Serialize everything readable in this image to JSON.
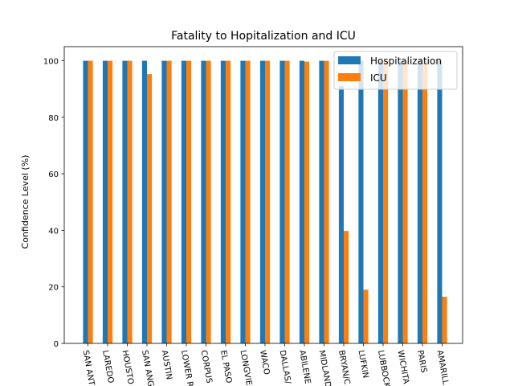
{
  "chart_data": {
    "type": "bar",
    "title": "Fatality to Hopitalization and ICU",
    "xlabel": "",
    "ylabel": "Confidence Level (%)",
    "ylim": [
      0,
      105
    ],
    "yticks": [
      0,
      20,
      40,
      60,
      80,
      100
    ],
    "categories": [
      "SAN ANT",
      "LAREDO",
      "HOUSTO",
      "SAN ANG",
      "AUSTIN",
      "LOWER R",
      "CORPUS",
      "EL PASO",
      "LONGVIE",
      "WACO",
      "DALLAS/",
      "ABILENE",
      "MIDLAND",
      "BRYAN/C",
      "LUFKIN",
      "LUBBOCK",
      "WICHITA",
      "PARIS",
      "AMARILL"
    ],
    "series": [
      {
        "name": "Hospitalization",
        "color": "#1f77b4",
        "values": [
          100,
          100,
          100,
          100,
          100,
          100,
          100,
          100,
          100,
          100,
          100,
          100,
          100,
          91,
          100,
          100,
          100,
          100,
          100
        ]
      },
      {
        "name": "ICU",
        "color": "#ff7f0e",
        "values": [
          100,
          100,
          100,
          95.3,
          100,
          100,
          100,
          100,
          100,
          100,
          100,
          99.7,
          100,
          39.8,
          19,
          100,
          100,
          100,
          16.5
        ]
      }
    ],
    "legend_position": "top-right",
    "grid": false
  }
}
